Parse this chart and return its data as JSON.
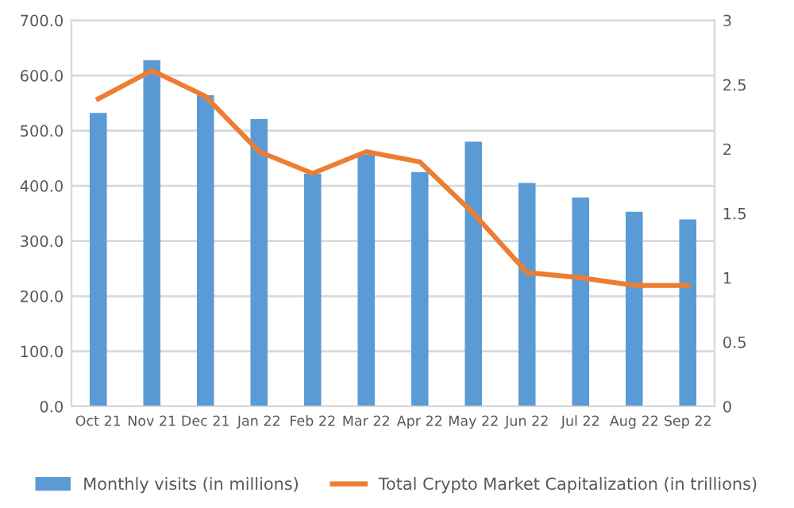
{
  "chart_data": {
    "type": "bar",
    "categories": [
      "Oct 21",
      "Nov 21",
      "Dec 21",
      "Jan 22",
      "Feb 22",
      "Mar 22",
      "Apr 22",
      "May 22",
      "Jun 22",
      "Jul 22",
      "Aug 22",
      "Sep 22"
    ],
    "series": [
      {
        "name": "Monthly visits (in millions)",
        "color": "#5b9bd5",
        "values": [
          532,
          628,
          564,
          521,
          422,
          457,
          425,
          480,
          405,
          379,
          353,
          339
        ]
      },
      {
        "name": "Total Crypto Market Capitalization (in trillions)",
        "type": "line",
        "axis": "y2",
        "color": "#ed7d31",
        "values": [
          2.39,
          2.61,
          2.41,
          1.98,
          1.81,
          1.98,
          1.9,
          1.5,
          1.04,
          1.0,
          0.94,
          0.94
        ]
      }
    ],
    "ylim": [
      0,
      700
    ],
    "yticks": [
      {
        "value": 0,
        "label": "0.0"
      },
      {
        "value": 100,
        "label": "100.0"
      },
      {
        "value": 200,
        "label": "200.0"
      },
      {
        "value": 300,
        "label": "300.0"
      },
      {
        "value": 400,
        "label": "400.0"
      },
      {
        "value": 500,
        "label": "500.0"
      },
      {
        "value": 600,
        "label": "600.0"
      },
      {
        "value": 700,
        "label": "700.0"
      }
    ],
    "y2lim": [
      0,
      3
    ],
    "y2ticks": [
      0,
      0.5,
      1,
      1.5,
      2,
      2.5,
      3
    ],
    "grid": "y",
    "legend": "bottom"
  }
}
